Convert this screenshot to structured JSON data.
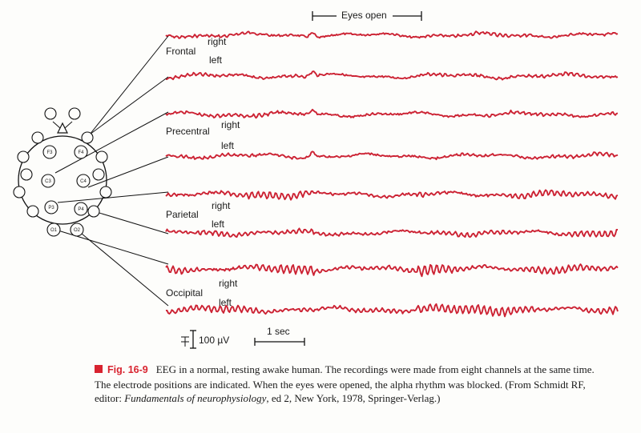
{
  "figure": {
    "eyes_open_label": "Eyes open",
    "region_labels": {
      "frontal": "Frontal",
      "precentral": "Precentral",
      "parietal": "Parietal",
      "occipital": "Occipital"
    },
    "side_labels": {
      "right": "right",
      "left": "left"
    },
    "electrodes": [
      "F3",
      "F4",
      "C3",
      "C4",
      "P3",
      "P4",
      "O1",
      "O2"
    ],
    "scale_amplitude": "100 µV",
    "scale_time": "1 sec",
    "trace_color": "#cc2233",
    "traces": [
      {
        "region": "Frontal",
        "side": "right",
        "alpha_amplitude": "low"
      },
      {
        "region": "Frontal",
        "side": "left",
        "alpha_amplitude": "low"
      },
      {
        "region": "Precentral",
        "side": "right",
        "alpha_amplitude": "low"
      },
      {
        "region": "Precentral",
        "side": "left",
        "alpha_amplitude": "low"
      },
      {
        "region": "Parietal",
        "side": "right",
        "alpha_amplitude": "medium"
      },
      {
        "region": "Parietal",
        "side": "left",
        "alpha_amplitude": "medium"
      },
      {
        "region": "Occipital",
        "side": "right",
        "alpha_amplitude": "high"
      },
      {
        "region": "Occipital",
        "side": "left",
        "alpha_amplitude": "high"
      }
    ]
  },
  "caption": {
    "figure_number": "Fig. 16-9",
    "text_before": "EEG in a normal, resting awake human. The recordings were made from eight channels at the same time. The electrode positions are indicated. When the eyes were opened, the alpha rhythm was blocked. (From Schmidt RF, editor: ",
    "book_title": "Fundamentals of neurophysiology",
    "text_after": ", ed 2, New York, 1978, Springer-Verlag.)"
  }
}
